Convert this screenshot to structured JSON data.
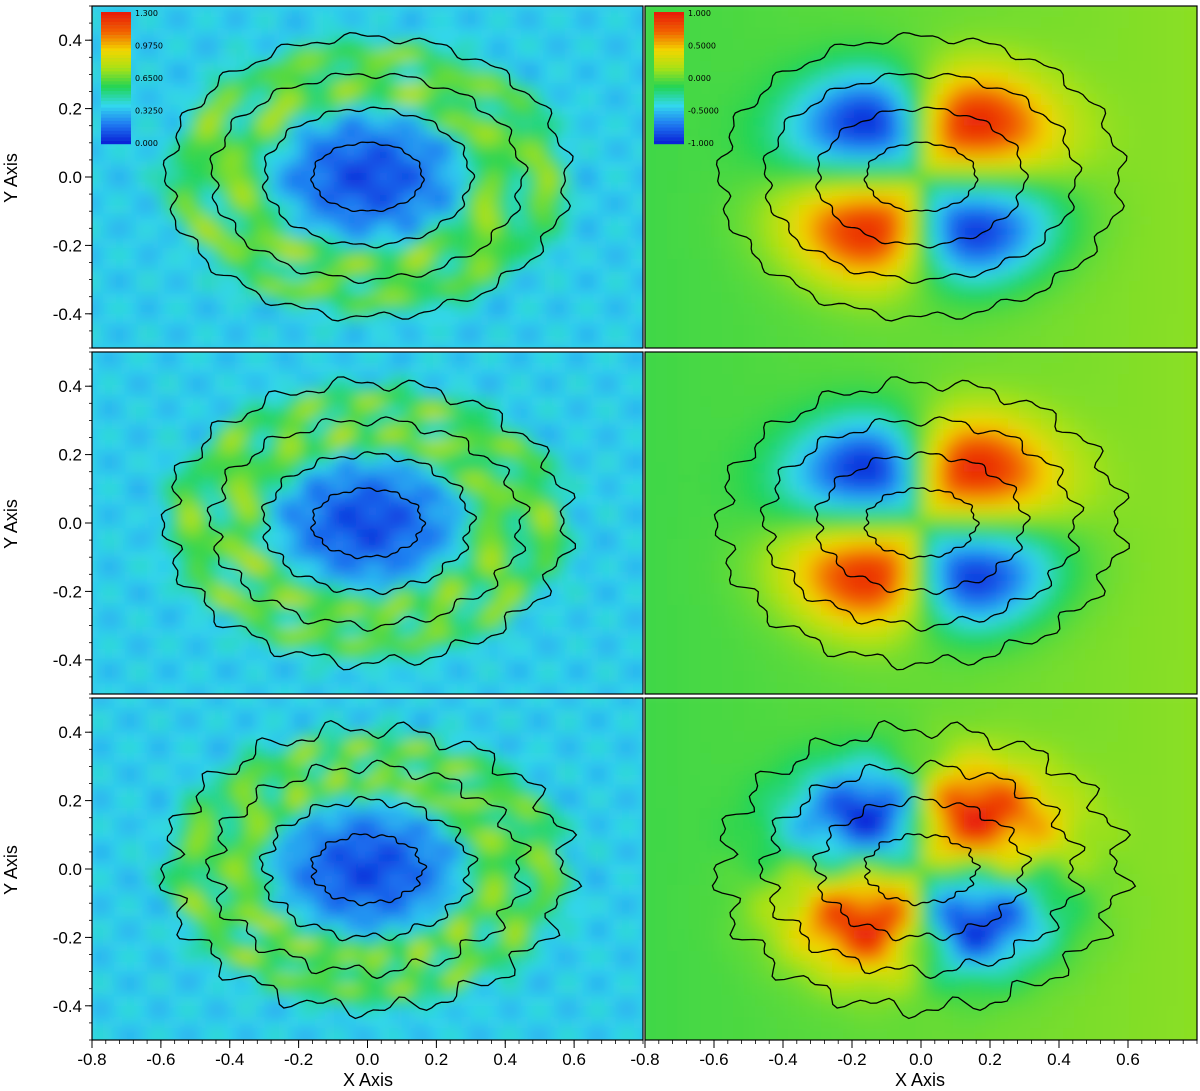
{
  "chart_data": {
    "type": "heatmap",
    "layout": "3 rows x 2 columns of panels, shared axes",
    "xlabel": "X Axis",
    "ylabel": "Y Axis",
    "xlim": [
      -0.8,
      0.8
    ],
    "ylim": [
      -0.5,
      0.5
    ],
    "x_ticks": [
      "-0.8",
      "-0.6",
      "-0.4",
      "-0.2",
      "0.0",
      "0.2",
      "0.4",
      "0.6"
    ],
    "x_ticks_right": [
      "-0.8",
      "-0.6",
      "-0.4",
      "-0.2",
      "0.0",
      "0.2",
      "0.4",
      "0.6"
    ],
    "y_ticks": [
      "0.4",
      "0.2",
      "0.0",
      "-0.2",
      "-0.4"
    ],
    "colormap": [
      "#0a24d8",
      "#1f7cf2",
      "#33d9ee",
      "#22d455",
      "#a8e216",
      "#f2d600",
      "#f26200",
      "#e81e08"
    ],
    "colorbars": [
      {
        "panel": "left",
        "labels": [
          "1.300",
          "0.9750",
          "0.6500",
          "0.3250",
          "0.000"
        ],
        "range": [
          0.0,
          1.3
        ]
      },
      {
        "panel": "right",
        "labels": [
          "1.000",
          "0.5000",
          "0.000",
          "-0.5000",
          "-1.000"
        ],
        "range": [
          -1.0,
          1.0
        ]
      }
    ],
    "contour_radii": [
      {
        "rx": 0.16,
        "ry": 0.1
      },
      {
        "rx": 0.3,
        "ry": 0.2
      },
      {
        "rx": 0.45,
        "ry": 0.3
      },
      {
        "rx": 0.58,
        "ry": 0.41
      }
    ],
    "panels": [
      {
        "row": 1,
        "column": "left"
      },
      {
        "row": 1,
        "column": "right"
      },
      {
        "row": 2,
        "column": "left"
      },
      {
        "row": 2,
        "column": "right"
      },
      {
        "row": 3,
        "column": "left"
      },
      {
        "row": 3,
        "column": "right"
      }
    ]
  }
}
